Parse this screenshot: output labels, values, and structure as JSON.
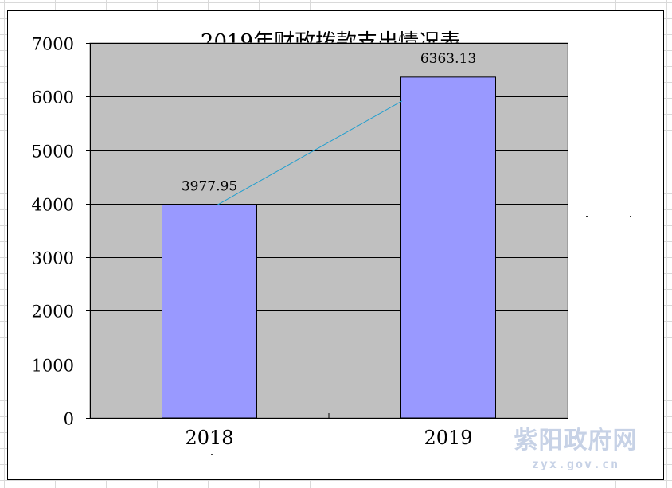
{
  "chart_data": {
    "type": "bar",
    "title": "2019年财政拨款支出情况表",
    "categories": [
      "2018",
      "2019"
    ],
    "values": [
      3977.95,
      6363.13
    ],
    "data_labels": [
      "3977.95",
      "6363.13"
    ],
    "ylim": [
      0,
      7000
    ],
    "yticks": [
      0,
      1000,
      2000,
      3000,
      4000,
      5000,
      6000,
      7000
    ],
    "grid": true,
    "trend_line": true,
    "legend": "none",
    "colors": {
      "bar": "#9999ff",
      "plot_bg": "#c0c0c0",
      "trend": "#1f9ecf",
      "axis": "#000000"
    }
  },
  "watermark": {
    "text_cn": "紫阳政府网",
    "text_en": "zyx.gov.cn"
  }
}
